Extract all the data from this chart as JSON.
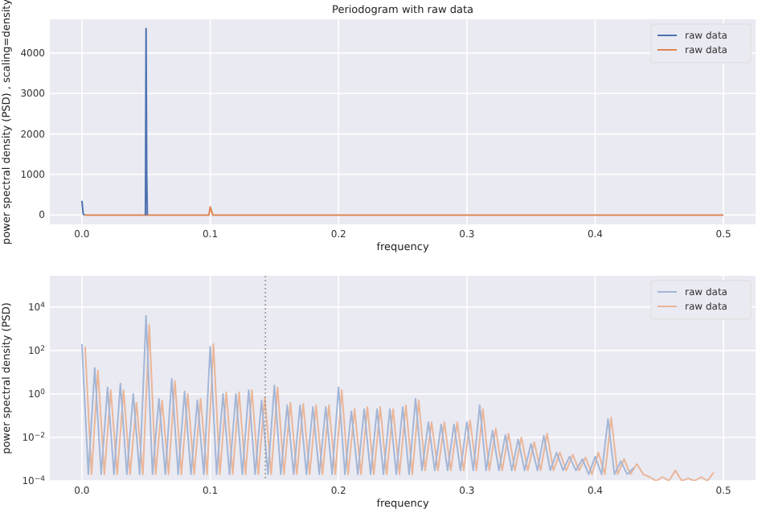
{
  "chart_data": [
    {
      "type": "line",
      "title": "Periodogram with raw data",
      "xlabel": "frequency",
      "ylabel": "power spectral density (PSD) , scaling=density",
      "xlim": [
        -0.025,
        0.525
      ],
      "xticks": [
        {
          "value": 0,
          "label": "0.0"
        },
        0.1,
        0.2,
        0.3,
        0.4,
        0.5
      ],
      "ylim": [
        -230,
        4830
      ],
      "yticks": [
        0,
        1000,
        2000,
        3000,
        4000
      ],
      "grid": true,
      "legend": "top right",
      "series": [
        {
          "name": "raw data",
          "color": "#4c72b0",
          "x": [
            0,
            0.001,
            0.002,
            0.02,
            0.0495,
            0.05,
            0.0505,
            0.051
          ],
          "values": [
            350,
            30,
            0,
            null,
            0,
            4600,
            1050,
            0
          ]
        },
        {
          "name": "raw data",
          "color": "#dd8452",
          "x": [
            0.002,
            0.099,
            0.1,
            0.101,
            0.102,
            0.5
          ],
          "values": [
            0,
            0,
            200,
            100,
            0,
            0
          ]
        }
      ]
    },
    {
      "type": "line",
      "xlabel": "frequency",
      "ylabel": "power spectral density (PSD)",
      "log": "y",
      "xlim": [
        -0.025,
        0.525
      ],
      "xticks": [
        {
          "value": 0,
          "label": "0.0"
        },
        0.1,
        0.2,
        0.3,
        0.4,
        0.5
      ],
      "ylim": [
        0.0001,
        275000
      ],
      "yticks": [
        {
          "value": 0.0001,
          "label": "10$^{−4}$"
        },
        {
          "value": 0.01,
          "label": "10$^{−2}$"
        },
        {
          "value": 1,
          "label": "10$^{0}$"
        },
        {
          "value": 100,
          "label": "10$^{2}$"
        },
        {
          "value": 10000,
          "label": "10$^{4}$"
        }
      ],
      "grid": true,
      "legend": "top right",
      "ref_lines": [
        {
          "axis": "x",
          "value": 0.143,
          "color": "#999999",
          "line_style": "dotted"
        }
      ],
      "series": [
        {
          "name": "raw data",
          "color": "#a4b6d6",
          "x": [
            0,
            0.005,
            0.01,
            0.015,
            0.02,
            0.025,
            0.03,
            0.035,
            0.04,
            0.045,
            0.05,
            0.055,
            0.06,
            0.065,
            0.07,
            0.075,
            0.08,
            0.085,
            0.09,
            0.095,
            0.1,
            0.105,
            0.11,
            0.115,
            0.12,
            0.125,
            0.13,
            0.135,
            0.14,
            0.145,
            0.15,
            0.155,
            0.16,
            0.165,
            0.17,
            0.175,
            0.18,
            0.185,
            0.19,
            0.195,
            0.2,
            0.205,
            0.21,
            0.215,
            0.22,
            0.225,
            0.23,
            0.235,
            0.24,
            0.245,
            0.25,
            0.255,
            0.26,
            0.265,
            0.27,
            0.275,
            0.28,
            0.285,
            0.29,
            0.295,
            0.3,
            0.305,
            0.31,
            0.315,
            0.32,
            0.325,
            0.33,
            0.335,
            0.34,
            0.345,
            0.35,
            0.355,
            0.36,
            0.365,
            0.37,
            0.375,
            0.38,
            0.385,
            0.39,
            0.395,
            0.4,
            0.405,
            0.41,
            0.415,
            0.42,
            0.425,
            0.43
          ],
          "values": [
            200,
            0.0002,
            16,
            0.0002,
            2,
            0.0002,
            3,
            0.0002,
            1,
            0.0002,
            4000,
            0.0002,
            0.6,
            0.0002,
            5,
            0.0002,
            1.3,
            0.0002,
            0.5,
            0.0002,
            150,
            0.0002,
            1,
            0.0002,
            1,
            0.0002,
            1.5,
            0.0002,
            0.5,
            0.0002,
            2.5,
            0.0002,
            0.3,
            0.0002,
            0.3,
            0.0002,
            0.25,
            0.0002,
            0.25,
            0.0002,
            2,
            0.0002,
            0.16,
            0.0002,
            0.2,
            0.0002,
            0.2,
            0.0002,
            0.2,
            0.0002,
            0.25,
            0.0002,
            0.6,
            0.0003,
            0.05,
            0.0003,
            0.04,
            0.0003,
            0.04,
            0.0003,
            0.05,
            0.0003,
            0.3,
            0.0003,
            0.02,
            0.0003,
            0.013,
            0.0003,
            0.008,
            0.0003,
            0.005,
            0.0003,
            0.012,
            0.0003,
            0.002,
            0.0003,
            0.0013,
            0.0003,
            0.001,
            0.0002,
            0.0013,
            0.0002,
            0.07,
            0.0002,
            0.0008,
            0.0002,
            0.0004
          ]
        },
        {
          "name": "raw data",
          "color": "#eab699",
          "x": [
            0.0025,
            0.0075,
            0.0125,
            0.0175,
            0.0225,
            0.0275,
            0.0325,
            0.0375,
            0.0425,
            0.0475,
            0.0525,
            0.0575,
            0.0625,
            0.0675,
            0.0725,
            0.0775,
            0.0825,
            0.0875,
            0.0925,
            0.0975,
            0.1025,
            0.1075,
            0.1125,
            0.1175,
            0.1225,
            0.1275,
            0.1325,
            0.1375,
            0.1425,
            0.1475,
            0.1525,
            0.1575,
            0.1625,
            0.1675,
            0.1725,
            0.1775,
            0.1825,
            0.1875,
            0.1925,
            0.1975,
            0.2025,
            0.2075,
            0.2125,
            0.2175,
            0.2225,
            0.2275,
            0.2325,
            0.2375,
            0.2425,
            0.2475,
            0.2525,
            0.2575,
            0.2625,
            0.2675,
            0.2725,
            0.2775,
            0.2825,
            0.2875,
            0.2925,
            0.2975,
            0.3025,
            0.3075,
            0.3125,
            0.3175,
            0.3225,
            0.3275,
            0.3325,
            0.3375,
            0.3425,
            0.3475,
            0.3525,
            0.3575,
            0.3625,
            0.3675,
            0.3725,
            0.3775,
            0.3825,
            0.3875,
            0.3925,
            0.3975,
            0.4025,
            0.4075,
            0.4125,
            0.4175,
            0.4225,
            0.4275,
            0.4325,
            0.4375,
            0.4425,
            0.4475,
            0.4525,
            0.4575,
            0.4625,
            0.4675,
            0.4725,
            0.4775,
            0.4825,
            0.4875,
            0.4925
          ],
          "values": [
            150,
            0.0002,
            12,
            0.0002,
            1.5,
            0.0002,
            1.5,
            0.0002,
            0.4,
            0.0002,
            1500,
            0.0002,
            0.5,
            0.0002,
            4,
            0.0002,
            1,
            0.0002,
            0.6,
            0.0002,
            200,
            0.0002,
            1.2,
            0.0002,
            1.2,
            0.0002,
            1.5,
            0.0002,
            0.7,
            0.0002,
            2,
            0.0002,
            0.4,
            0.0002,
            0.35,
            0.0002,
            0.3,
            0.0002,
            0.3,
            0.0002,
            1.5,
            0.0002,
            0.2,
            0.0002,
            0.25,
            0.0002,
            0.25,
            0.0002,
            0.2,
            0.0002,
            0.3,
            0.0002,
            0.5,
            0.0003,
            0.05,
            0.0003,
            0.05,
            0.0003,
            0.05,
            0.0003,
            0.06,
            0.0003,
            0.2,
            0.0003,
            0.025,
            0.0003,
            0.015,
            0.0003,
            0.01,
            0.0003,
            0.006,
            0.0003,
            0.015,
            0.0003,
            0.002,
            0.0003,
            0.0016,
            0.0003,
            0.0012,
            0.0002,
            0.002,
            0.0002,
            0.08,
            0.0002,
            0.001,
            0.0002,
            0.0006,
            0.0002,
            0.00015,
            0.0001,
            0.00015,
            0.0001,
            0.0003,
            0.0001,
            0.00013,
            0.0001,
            0.00015,
            0.0001,
            0.00025
          ]
        }
      ]
    }
  ]
}
